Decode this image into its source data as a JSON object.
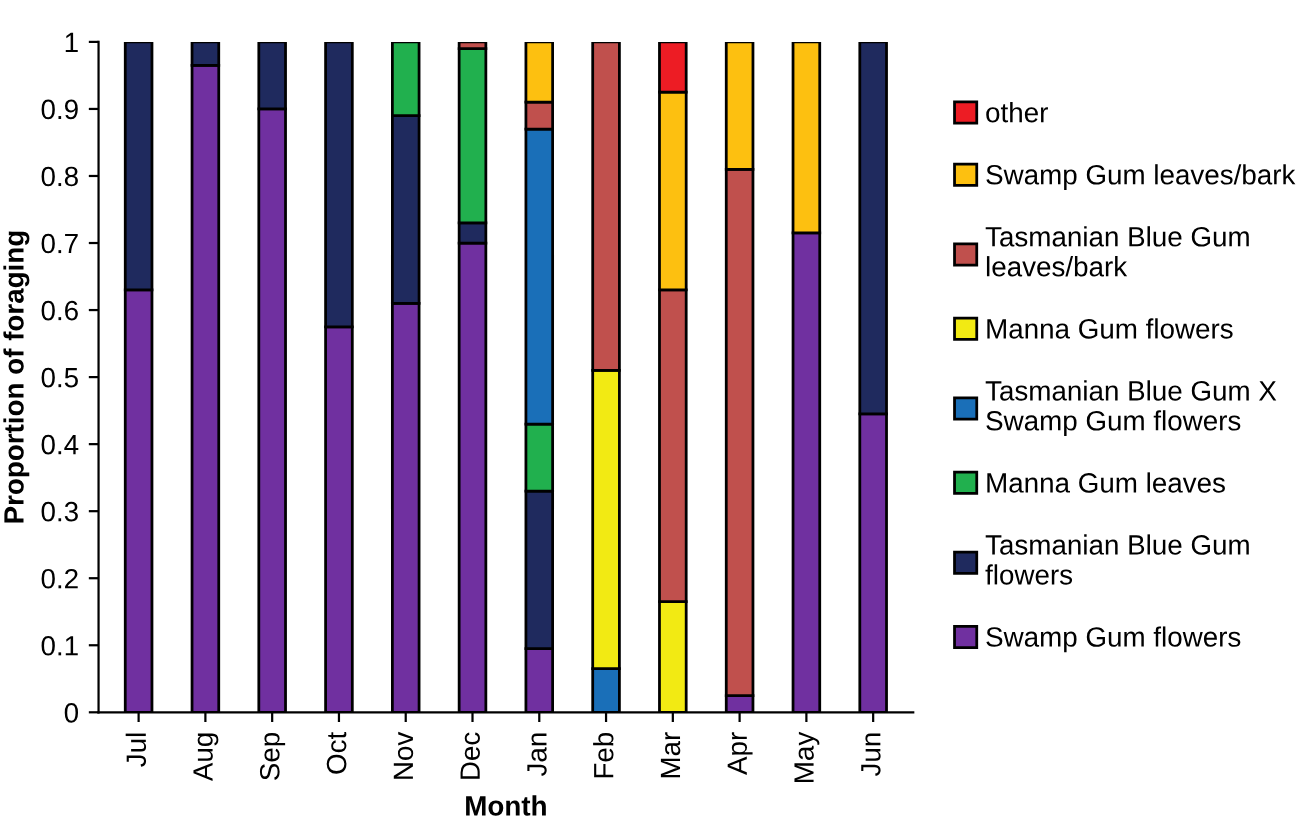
{
  "chart_data": {
    "type": "bar",
    "stacked": true,
    "xlabel": "Month",
    "ylabel": "Proportion of foraging",
    "categories": [
      "Jul",
      "Aug",
      "Sep",
      "Oct",
      "Nov",
      "Dec",
      "Jan",
      "Feb",
      "Mar",
      "Apr",
      "May",
      "Jun"
    ],
    "series": [
      {
        "name": "Swamp Gum flowers",
        "color": "#7030a0",
        "values": [
          0.63,
          0.965,
          0.9,
          0.575,
          0.61,
          0.7,
          0.095,
          null,
          null,
          0.025,
          0.715,
          0.445
        ]
      },
      {
        "name": "Tasmanian Blue Gum\nflowers",
        "color": "#1f2a5e",
        "values": [
          0.37,
          0.035,
          0.1,
          0.425,
          0.28,
          0.03,
          0.235,
          null,
          null,
          null,
          null,
          0.555
        ]
      },
      {
        "name": "Manna Gum leaves",
        "color": "#21b04e",
        "values": [
          null,
          null,
          null,
          null,
          0.11,
          0.26,
          0.1,
          null,
          null,
          null,
          null,
          null
        ]
      },
      {
        "name": "Tasmanian Blue Gum X\nSwamp Gum flowers",
        "color": "#1a6fb8",
        "values": [
          null,
          null,
          null,
          null,
          null,
          null,
          0.44,
          0.065,
          null,
          null,
          null,
          null
        ]
      },
      {
        "name": "Manna Gum flowers",
        "color": "#f2ea13",
        "values": [
          null,
          null,
          null,
          null,
          null,
          null,
          null,
          0.445,
          0.165,
          null,
          null,
          null
        ]
      },
      {
        "name": "Tasmanian Blue Gum\nleaves/bark",
        "color": "#c0504d",
        "values": [
          null,
          null,
          null,
          null,
          null,
          0.01,
          0.04,
          0.49,
          0.465,
          0.785,
          null,
          null
        ]
      },
      {
        "name": "Swamp Gum leaves/bark",
        "color": "#fdc010",
        "values": [
          null,
          null,
          null,
          null,
          null,
          null,
          0.09,
          null,
          0.295,
          0.19,
          0.285,
          null
        ]
      },
      {
        "name": "other",
        "color": "#ed1c24",
        "values": [
          null,
          null,
          null,
          null,
          null,
          null,
          null,
          null,
          0.075,
          null,
          null,
          null
        ]
      }
    ],
    "ylim": [
      0,
      1
    ],
    "yticks": [
      0,
      0.1,
      0.2,
      0.3,
      0.4,
      0.5,
      0.6,
      0.7,
      0.8,
      0.9,
      1
    ],
    "grid": false,
    "legend": "right"
  }
}
